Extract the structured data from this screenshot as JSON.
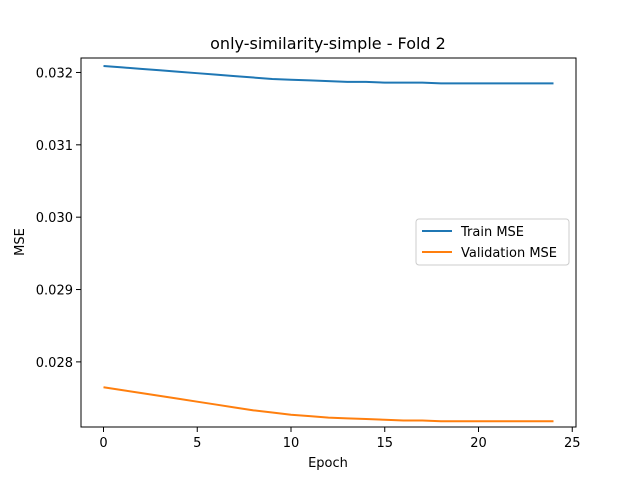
{
  "chart_data": {
    "type": "line",
    "title": "only-similarity-simple - Fold 2",
    "xlabel": "Epoch",
    "ylabel": "MSE",
    "xlim": [
      -1.2,
      25.2
    ],
    "ylim": [
      0.0271,
      0.0322
    ],
    "xticks": [
      0,
      5,
      10,
      15,
      20,
      25
    ],
    "xtick_labels": [
      "0",
      "5",
      "10",
      "15",
      "20",
      "25"
    ],
    "yticks": [
      0.028,
      0.029,
      0.03,
      0.031,
      0.032
    ],
    "ytick_labels": [
      "0.028",
      "0.029",
      "0.030",
      "0.031",
      "0.032"
    ],
    "grid": false,
    "legend_position": "center-right",
    "x": [
      0,
      1,
      2,
      3,
      4,
      5,
      6,
      7,
      8,
      9,
      10,
      11,
      12,
      13,
      14,
      15,
      16,
      17,
      18,
      19,
      20,
      21,
      22,
      23,
      24
    ],
    "series": [
      {
        "name": "Train MSE",
        "color": "#1f77b4",
        "values": [
          0.03209,
          0.03207,
          0.03205,
          0.03203,
          0.03201,
          0.03199,
          0.03197,
          0.03195,
          0.03193,
          0.03191,
          0.0319,
          0.03189,
          0.03188,
          0.03187,
          0.03187,
          0.03186,
          0.03186,
          0.03186,
          0.03185,
          0.03185,
          0.03185,
          0.03185,
          0.03185,
          0.03185,
          0.03185
        ]
      },
      {
        "name": "Validation MSE",
        "color": "#ff7f0e",
        "values": [
          0.02765,
          0.02761,
          0.02757,
          0.02753,
          0.02749,
          0.02745,
          0.02741,
          0.02737,
          0.02733,
          0.0273,
          0.02727,
          0.02725,
          0.02723,
          0.02722,
          0.02721,
          0.0272,
          0.02719,
          0.02719,
          0.02718,
          0.02718,
          0.02718,
          0.02718,
          0.02718,
          0.02718,
          0.02718
        ]
      }
    ]
  }
}
